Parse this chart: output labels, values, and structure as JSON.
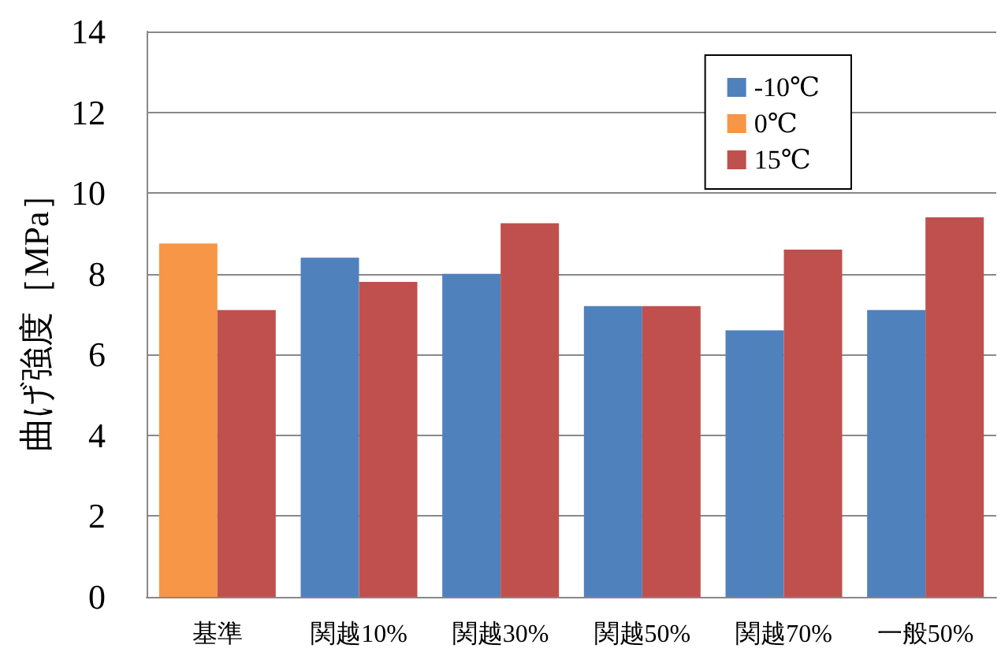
{
  "chart_data": {
    "type": "bar",
    "ylabel": "曲げ強度［MPa］",
    "categories": [
      "基準",
      "関越10%",
      "関越30%",
      "関越50%",
      "関越70%",
      "一般50%"
    ],
    "series": [
      {
        "name": "-10℃",
        "color": "#4f81bd",
        "values": [
          null,
          8.4,
          8.0,
          7.2,
          6.6,
          7.1
        ]
      },
      {
        "name": "0℃",
        "color": "#f79646",
        "values": [
          8.75,
          null,
          null,
          null,
          null,
          null
        ]
      },
      {
        "name": "15℃",
        "color": "#c0504d",
        "values": [
          7.1,
          7.8,
          9.25,
          7.2,
          8.6,
          9.4
        ]
      }
    ],
    "ylim": [
      0,
      14
    ],
    "yticks": [
      0,
      2,
      4,
      6,
      8,
      10,
      12,
      14
    ],
    "grid": "y",
    "legend": "top right"
  }
}
